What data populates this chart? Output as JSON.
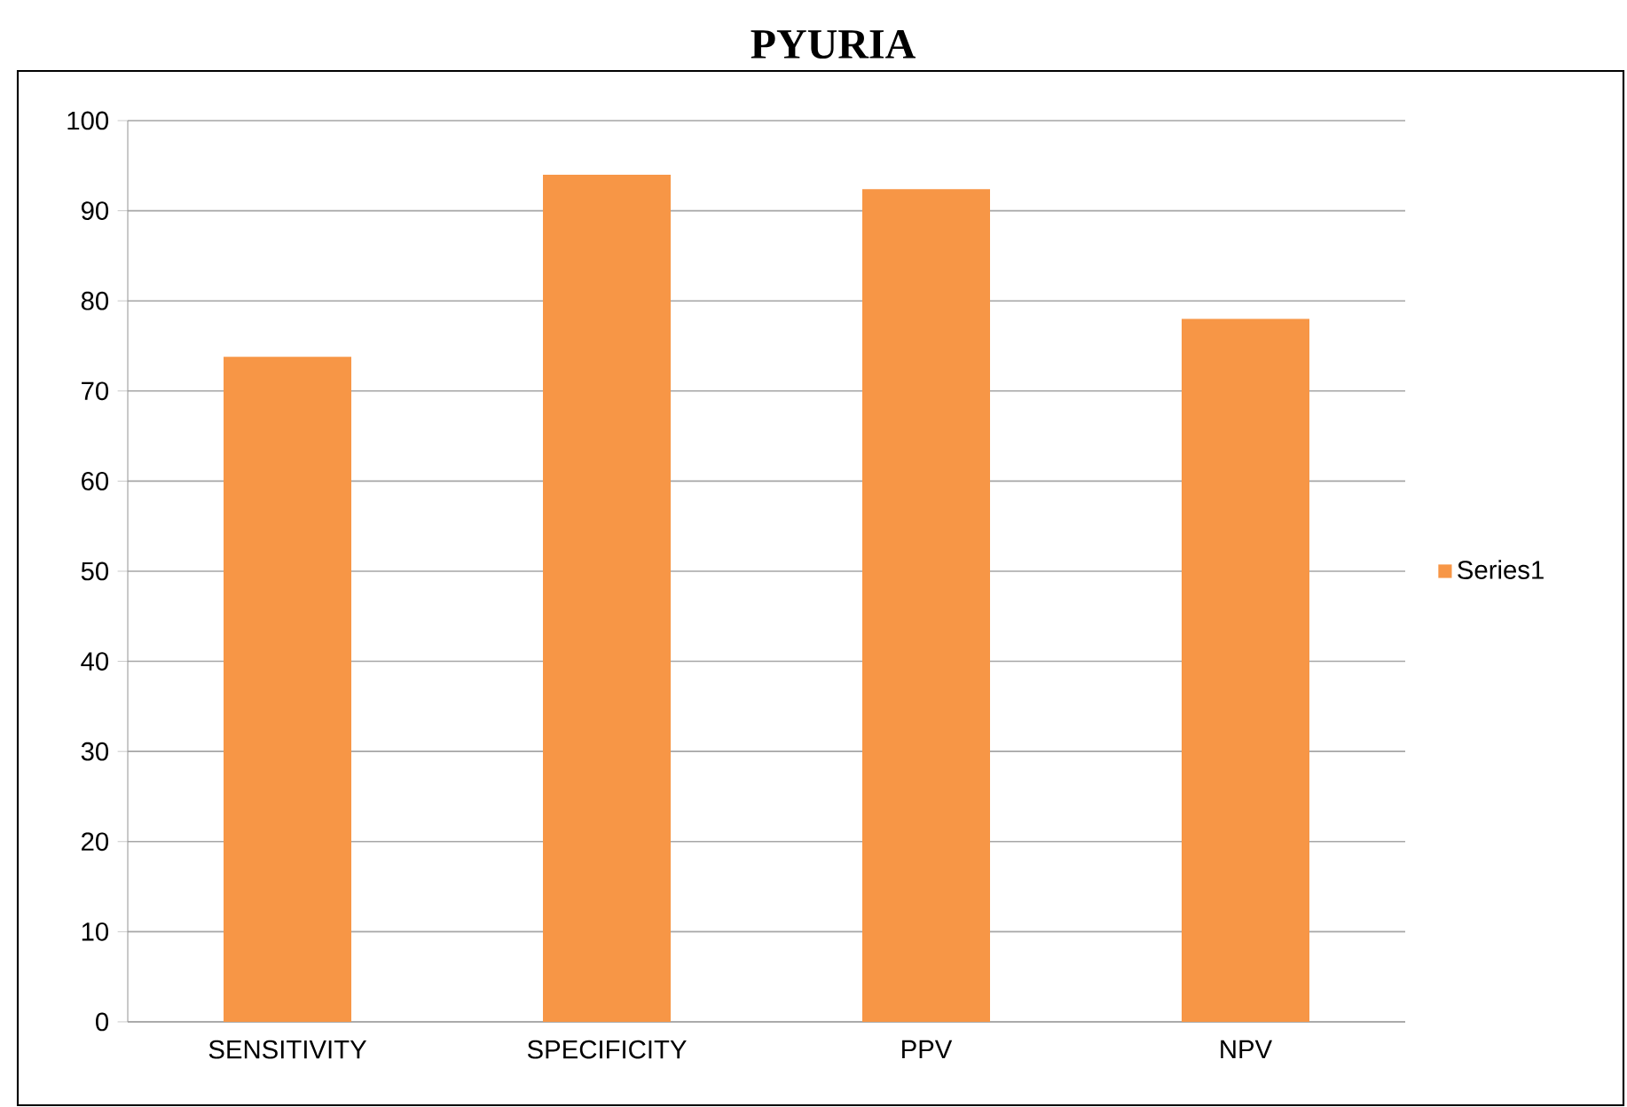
{
  "chart_data": {
    "type": "bar",
    "title": "PYURIA",
    "categories": [
      "SENSITIVITY",
      "SPECIFICITY",
      "PPV",
      "NPV"
    ],
    "series": [
      {
        "name": "Series1",
        "color": "#f79646",
        "values": [
          73.8,
          94.0,
          92.4,
          78.0
        ]
      }
    ],
    "ylim": [
      0,
      100
    ],
    "yticks": [
      0,
      10,
      20,
      30,
      40,
      50,
      60,
      70,
      80,
      90,
      100
    ],
    "grid": "y",
    "legend": "right"
  }
}
